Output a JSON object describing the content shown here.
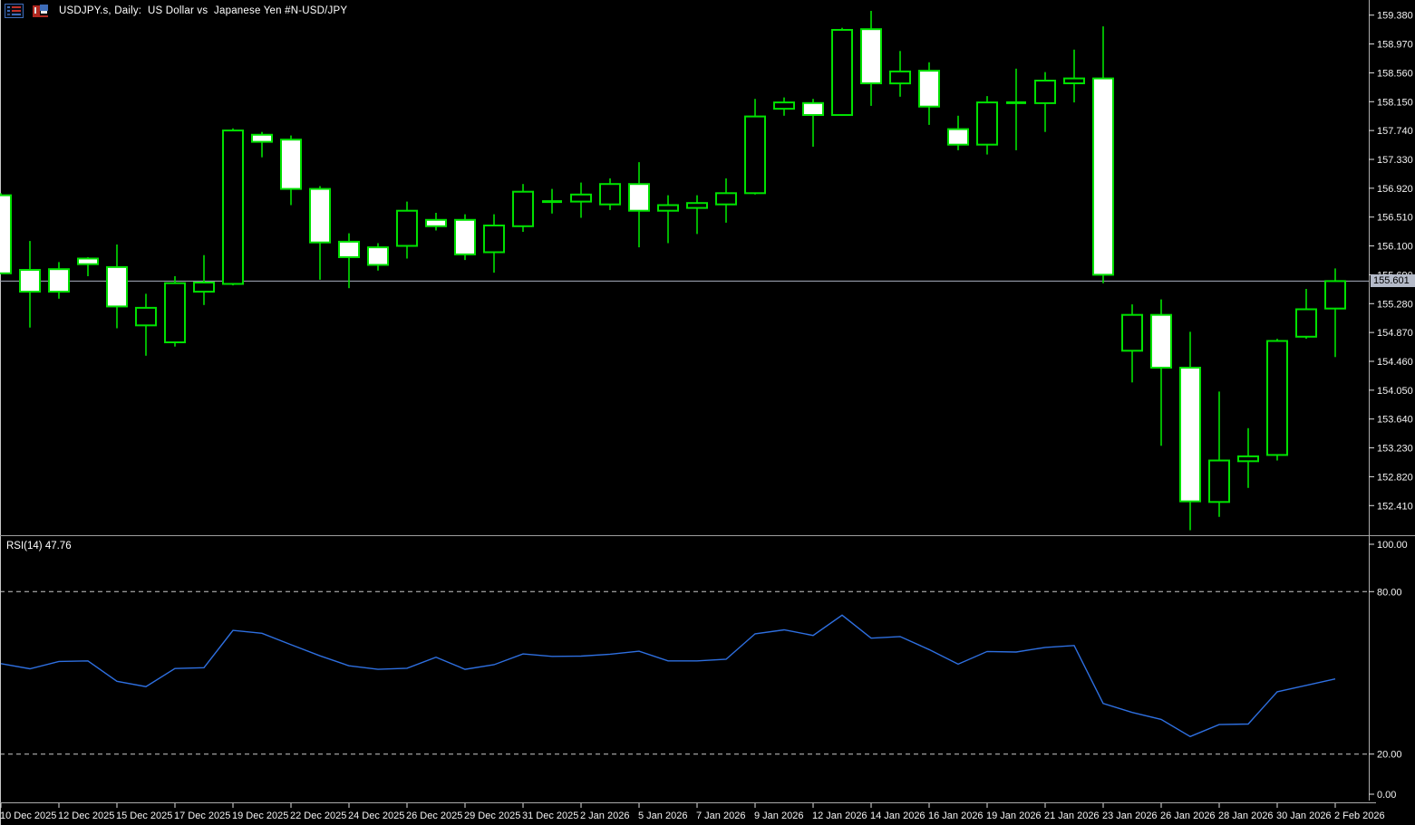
{
  "window": {
    "title": "USDJPY.s, Daily:  US Dollar vs  Japanese Yen #N-USD/JPY",
    "icons": [
      "symbol-list-icon",
      "chart-window-icon"
    ]
  },
  "chart_data": {
    "type": "candlestick_with_rsi",
    "symbol": "USDJPY.s",
    "timeframe": "Daily",
    "description": "US Dollar vs Japanese Yen #N-USD/JPY",
    "current_price": "155.601",
    "price_axis_ticks": [
      "159.380",
      "158.970",
      "158.560",
      "158.150",
      "157.740",
      "157.330",
      "156.920",
      "156.510",
      "156.100",
      "155.690",
      "155.280",
      "154.870",
      "154.460",
      "154.050",
      "153.640",
      "153.230",
      "152.820",
      "152.410"
    ],
    "price_axis_range": [
      151.98,
      159.6
    ],
    "date_labels": [
      "10 Dec 2025",
      "12 Dec 2025",
      "15 Dec 2025",
      "17 Dec 2025",
      "19 Dec 2025",
      "22 Dec 2025",
      "24 Dec 2025",
      "26 Dec 2025",
      "29 Dec 2025",
      "31 Dec 2025",
      "2 Jan 2026",
      "5 Jan 2026",
      "7 Jan 2026",
      "9 Jan 2026",
      "12 Jan 2026",
      "14 Jan 2026",
      "16 Jan 2026",
      "19 Jan 2026",
      "21 Jan 2026",
      "23 Jan 2026",
      "26 Jan 2026",
      "28 Jan 2026",
      "30 Jan 2026",
      "2 Feb 2026"
    ],
    "candles": {
      "dates": [
        "10 Dec 2025",
        "11 Dec 2025",
        "12 Dec 2025",
        "14 Dec 2025",
        "15 Dec 2025",
        "16 Dec 2025",
        "17 Dec 2025",
        "18 Dec 2025",
        "19 Dec 2025",
        "21 Dec 2025",
        "22 Dec 2025",
        "23 Dec 2025",
        "24 Dec 2025",
        "25 Dec 2025",
        "26 Dec 2025",
        "28 Dec 2025",
        "29 Dec 2025",
        "30 Dec 2025",
        "31 Dec 2025",
        "1 Jan 2026",
        "2 Jan 2026",
        "4 Jan 2026",
        "5 Jan 2026",
        "6 Jan 2026",
        "7 Jan 2026",
        "8 Jan 2026",
        "9 Jan 2026",
        "11 Jan 2026",
        "12 Jan 2026",
        "13 Jan 2026",
        "14 Jan 2026",
        "15 Jan 2026",
        "16 Jan 2026",
        "18 Jan 2026",
        "19 Jan 2026",
        "20 Jan 2026",
        "21 Jan 2026",
        "22 Jan 2026",
        "23 Jan 2026",
        "25 Jan 2026",
        "26 Jan 2026",
        "27 Jan 2026",
        "28 Jan 2026",
        "29 Jan 2026",
        "30 Jan 2026",
        "1 Feb 2026",
        "2 Feb 2026"
      ],
      "open": [
        156.82,
        155.76,
        155.77,
        155.92,
        155.8,
        154.97,
        154.73,
        155.45,
        155.56,
        157.68,
        157.61,
        156.91,
        156.16,
        156.08,
        156.1,
        156.47,
        156.47,
        156.01,
        156.38,
        156.72,
        156.73,
        156.69,
        156.98,
        156.6,
        156.64,
        156.69,
        156.85,
        158.05,
        158.13,
        157.96,
        159.18,
        158.41,
        158.59,
        157.76,
        157.54,
        158.13,
        158.13,
        158.41,
        158.48,
        154.61,
        155.12,
        154.37,
        152.46,
        153.04,
        153.13,
        154.81,
        155.21
      ],
      "high": [
        156.85,
        156.17,
        155.87,
        155.94,
        156.12,
        155.42,
        155.67,
        155.97,
        157.77,
        157.72,
        157.67,
        156.95,
        156.28,
        156.14,
        156.73,
        156.57,
        156.55,
        156.55,
        156.98,
        156.91,
        157.0,
        157.06,
        157.29,
        156.82,
        156.82,
        157.06,
        158.19,
        158.21,
        158.19,
        159.2,
        159.44,
        158.87,
        158.71,
        157.95,
        158.23,
        158.62,
        158.57,
        158.89,
        159.22,
        155.27,
        155.34,
        154.88,
        154.03,
        153.51,
        154.78,
        155.49,
        155.78
      ],
      "low": [
        155.7,
        154.94,
        155.35,
        155.67,
        154.93,
        154.54,
        154.67,
        155.26,
        155.54,
        157.36,
        156.68,
        155.62,
        155.5,
        155.75,
        155.92,
        156.32,
        155.9,
        155.72,
        156.3,
        156.56,
        156.5,
        156.61,
        156.08,
        156.14,
        156.27,
        156.43,
        156.83,
        157.95,
        157.51,
        157.95,
        158.09,
        158.22,
        157.82,
        157.46,
        157.4,
        157.46,
        157.72,
        158.14,
        155.57,
        154.16,
        153.26,
        152.06,
        152.25,
        152.66,
        153.05,
        154.78,
        154.52
      ],
      "close": [
        155.71,
        155.45,
        155.45,
        155.84,
        155.24,
        155.22,
        155.57,
        155.58,
        157.74,
        157.58,
        156.91,
        156.15,
        155.94,
        155.83,
        156.6,
        156.38,
        155.98,
        156.39,
        156.87,
        156.74,
        156.83,
        156.98,
        156.6,
        156.68,
        156.71,
        156.85,
        157.94,
        158.14,
        157.96,
        159.17,
        158.41,
        158.58,
        158.08,
        157.54,
        158.14,
        158.14,
        158.45,
        158.48,
        155.69,
        155.12,
        154.37,
        152.47,
        153.05,
        153.11,
        154.75,
        155.2,
        155.6
      ]
    },
    "rsi": {
      "label": "RSI(14) 47.76",
      "period": 14,
      "current": 47.76,
      "levels": [
        80,
        20
      ],
      "axis_ticks": [
        "100.00",
        "80.00",
        "20.00",
        "0.00"
      ],
      "axis_range": [
        0,
        100
      ],
      "values": [
        53.4,
        51.5,
        54.2,
        54.4,
        46.9,
        44.9,
        51.6,
        51.9,
        65.7,
        64.6,
        60.4,
        56.3,
        52.6,
        51.3,
        51.7,
        55.8,
        51.3,
        53.0,
        57.0,
        56.1,
        56.2,
        56.9,
        58.0,
        54.4,
        54.4,
        55.0,
        64.4,
        65.9,
        63.8,
        71.3,
        62.8,
        63.4,
        58.6,
        53.2,
        57.9,
        57.7,
        59.4,
        60.1,
        38.7,
        35.4,
        32.8,
        26.5,
        30.9,
        31.1,
        43.0,
        45.4,
        47.76
      ]
    },
    "colors": {
      "background": "#000000",
      "candle_outline": "#00E100",
      "bull_fill": "#000000",
      "bear_fill": "#FFFFFF",
      "rsi_line": "#2E6FE0",
      "price_line": "#A9AFC0",
      "price_tag_bg": "#B5BBC9",
      "level_dash": "#C9C9C9",
      "axis_line": "#ABABAB",
      "axis_text": "#F2F2F2"
    }
  }
}
